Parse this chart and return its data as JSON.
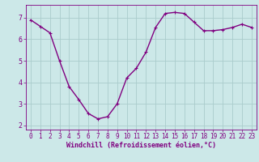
{
  "x": [
    0,
    1,
    2,
    3,
    4,
    5,
    6,
    7,
    8,
    9,
    10,
    11,
    12,
    13,
    14,
    15,
    16,
    17,
    18,
    19,
    20,
    21,
    22,
    23
  ],
  "y": [
    6.9,
    6.6,
    6.3,
    5.0,
    3.8,
    3.2,
    2.55,
    2.3,
    2.4,
    3.0,
    4.2,
    4.65,
    5.4,
    6.55,
    7.2,
    7.25,
    7.2,
    6.8,
    6.4,
    6.4,
    6.45,
    6.55,
    6.7,
    6.55
  ],
  "line_color": "#800080",
  "marker": "+",
  "marker_color": "#800080",
  "bg_color": "#cce8e8",
  "grid_color": "#aacccc",
  "xlabel": "Windchill (Refroidissement éolien,°C)",
  "xlabel_color": "#800080",
  "tick_color": "#800080",
  "spine_color": "#800080",
  "xlim": [
    -0.5,
    23.5
  ],
  "ylim": [
    1.8,
    7.6
  ],
  "yticks": [
    2,
    3,
    4,
    5,
    6,
    7
  ],
  "xticks": [
    0,
    1,
    2,
    3,
    4,
    5,
    6,
    7,
    8,
    9,
    10,
    11,
    12,
    13,
    14,
    15,
    16,
    17,
    18,
    19,
    20,
    21,
    22,
    23
  ],
  "linewidth": 1.0,
  "markersize": 3.5,
  "tick_fontsize": 5.5,
  "ylabel_fontsize": 6.0,
  "xlabel_fontsize": 6.0
}
